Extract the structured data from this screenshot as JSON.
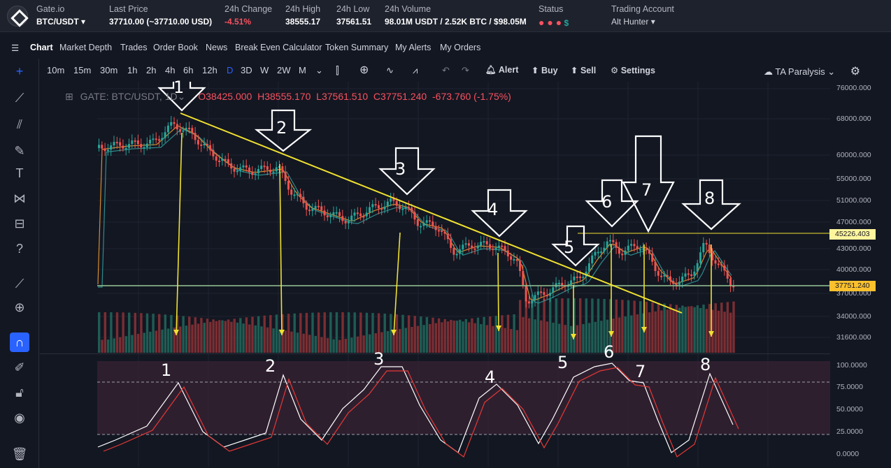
{
  "header": {
    "exchange": "Gate.io",
    "pair": "BTC/USDT",
    "last_price_label": "Last Price",
    "last_price": "37710.00 (~37710.00 USD)",
    "change_label": "24h Change",
    "change": "-4.51%",
    "high_label": "24h High",
    "high": "38555.17",
    "low_label": "24h Low",
    "low": "37561.51",
    "volume_label": "24h Volume",
    "volume": "98.01M USDT / 2.52K BTC / $98.05M",
    "status_label": "Status",
    "account_label": "Trading Account",
    "account": "Alt Hunter"
  },
  "menu": [
    "Chart",
    "Market Depth",
    "Trades",
    "Order Book",
    "News",
    "Break Even Calculator",
    "Token Summary",
    "My Alerts",
    "My Orders"
  ],
  "timeframes": [
    "10m",
    "15m",
    "30m",
    "1h",
    "2h",
    "4h",
    "6h",
    "12h",
    "D",
    "3D",
    "W",
    "2W",
    "M"
  ],
  "selected_timeframe": "D",
  "actions": {
    "alert": "Alert",
    "buy": "Buy",
    "sell": "Sell",
    "settings": "Settings"
  },
  "layout_name": "TA Paralysis",
  "legend": {
    "symbol": "GATE: BTC/USDT, 1D",
    "open": "O38425.000",
    "high": "H38555.170",
    "low": "L37561.510",
    "close": "C37751.240",
    "change": "-673.760 (-1.75%)"
  },
  "price_axis": [
    "76000.000",
    "68000.000",
    "60000.000",
    "55000.000",
    "51000.000",
    "47000.000",
    "43000.000",
    "40000.000",
    "37000.000",
    "34000.000",
    "31600.000"
  ],
  "osc_axis": [
    "100.0000",
    "75.0000",
    "50.0000",
    "25.0000",
    "0.0000"
  ],
  "price_tags": {
    "resistance": "45226.403",
    "current": "37751.240"
  },
  "arrow_labels": [
    "1",
    "2",
    "3",
    "4",
    "5",
    "6",
    "7",
    "8"
  ],
  "osc_labels": [
    "1",
    "2",
    "3",
    "4",
    "5",
    "6",
    "7",
    "8"
  ],
  "colors": {
    "bull": "#26a69a",
    "bear": "#ef5350",
    "trendline": "#f0e130",
    "bg": "#131722",
    "accent": "#2962ff"
  }
}
